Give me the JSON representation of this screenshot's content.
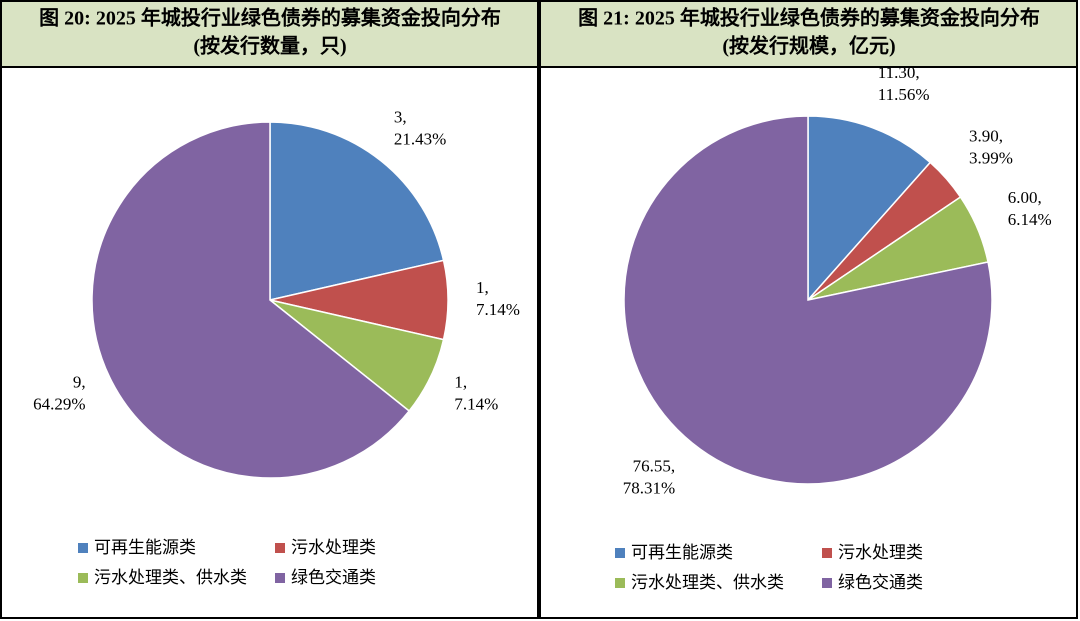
{
  "chart_data": [
    {
      "type": "pie",
      "title": "图 20: 2025 年城投行业绿色债券的募集资金投向分布",
      "subtitle": "(按发行数量，只)",
      "categories": [
        "可再生能源类",
        "污水处理类",
        "污水处理类、供水类",
        "绿色交通类"
      ],
      "colors": [
        "#4f81bd",
        "#c0504d",
        "#9bbb59",
        "#8064a2"
      ],
      "values": [
        3,
        1,
        1,
        9
      ],
      "value_labels": [
        "3,",
        "1,",
        "1,",
        "9,"
      ],
      "percent_labels": [
        "21.43%",
        "7.14%",
        "7.14%",
        "64.29%"
      ]
    },
    {
      "type": "pie",
      "title": "图 21: 2025 年城投行业绿色债券的募集资金投向分布",
      "subtitle": "(按发行规模，亿元)",
      "categories": [
        "可再生能源类",
        "污水处理类",
        "污水处理类、供水类",
        "绿色交通类"
      ],
      "colors": [
        "#4f81bd",
        "#c0504d",
        "#9bbb59",
        "#8064a2"
      ],
      "values": [
        11.3,
        3.9,
        6.0,
        76.55
      ],
      "value_labels": [
        "11.30,",
        "3.90,",
        "6.00,",
        "76.55,"
      ],
      "percent_labels": [
        "11.56%",
        "3.99%",
        "6.14%",
        "78.31%"
      ]
    }
  ]
}
